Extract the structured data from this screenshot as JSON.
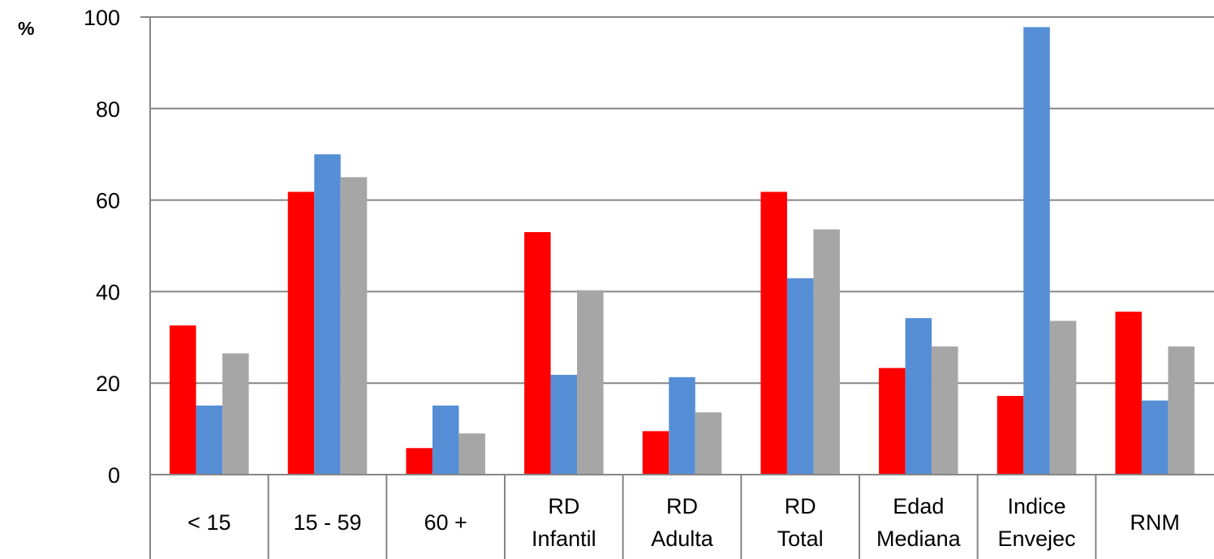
{
  "chart_data": {
    "type": "bar",
    "ylabel": "%",
    "ylim": [
      0,
      100
    ],
    "yticks": [
      0,
      20,
      40,
      60,
      80,
      100
    ],
    "grid": true,
    "categories": [
      [
        "< 15"
      ],
      [
        "15 - 59"
      ],
      [
        "60 +"
      ],
      [
        "RD",
        "Infantil"
      ],
      [
        "RD",
        "Adulta"
      ],
      [
        "RD",
        "Total"
      ],
      [
        "Edad",
        "Mediana"
      ],
      [
        "Indice",
        "Envejec"
      ],
      [
        "RNM"
      ]
    ],
    "series": [
      {
        "color": "#ff0000",
        "values": [
          32.6,
          61.8,
          5.8,
          53.0,
          9.5,
          61.8,
          23.3,
          17.2,
          35.6
        ]
      },
      {
        "color": "#558ed5",
        "values": [
          15.1,
          70.0,
          15.1,
          21.8,
          21.3,
          42.9,
          34.2,
          97.8,
          16.2
        ]
      },
      {
        "color": "#a6a6a6",
        "values": [
          26.5,
          65.0,
          9.0,
          40.3,
          13.6,
          53.6,
          28.0,
          33.6,
          28.0
        ]
      }
    ]
  }
}
